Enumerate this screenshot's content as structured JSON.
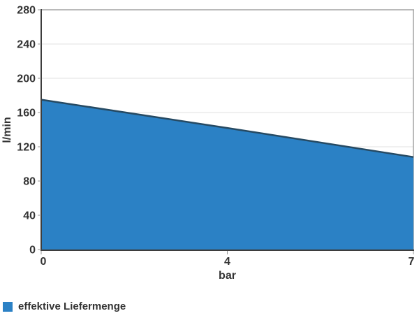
{
  "chart_data": {
    "type": "area",
    "categories": [
      "0",
      "4",
      "7"
    ],
    "series": [
      {
        "name": "effektive Liefermenge",
        "values": [
          175,
          142,
          108
        ],
        "fill_color": "#2b81c5",
        "line_color": "#264a63"
      }
    ],
    "title": "",
    "xlabel": "bar",
    "ylabel": "l/min",
    "ylim": [
      0,
      280
    ],
    "ytick_step": 40,
    "ytick_labels": [
      "280",
      "240",
      "200",
      "160",
      "120",
      "80",
      "40",
      "0"
    ],
    "xtick_labels": [
      "0",
      "4",
      "7"
    ],
    "grid": "horizontal gridlines on",
    "legend_position": "bottom-left"
  }
}
